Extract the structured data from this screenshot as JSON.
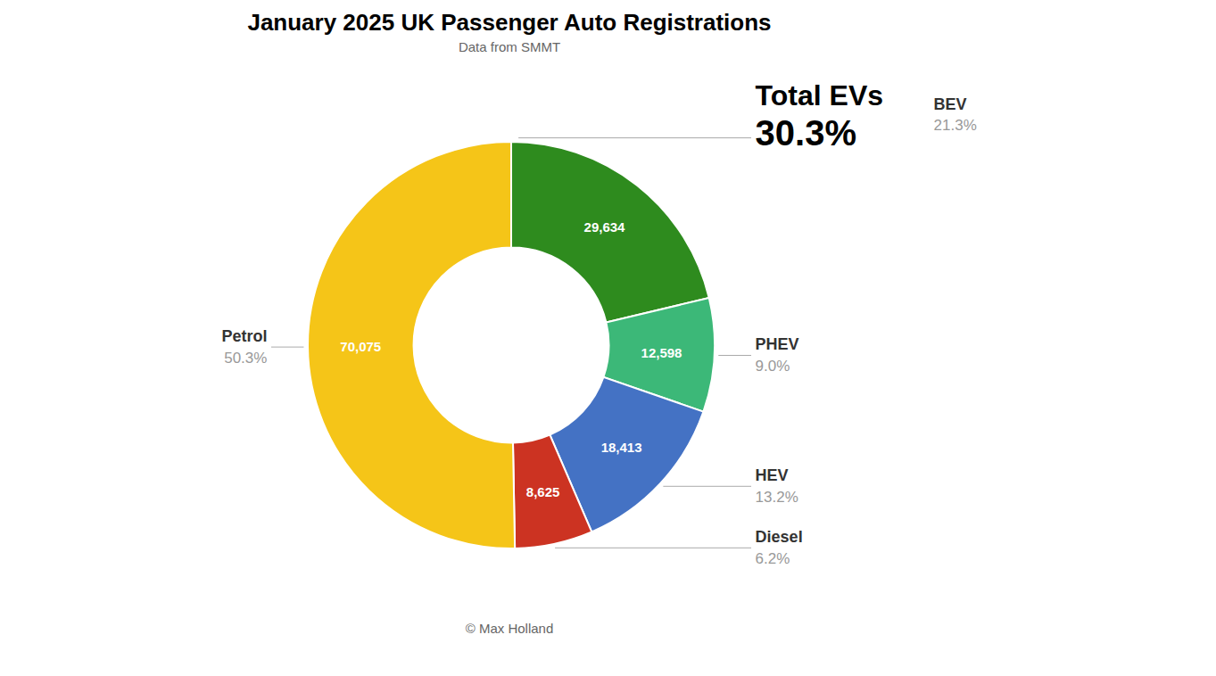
{
  "chart_data": {
    "type": "pie",
    "title": "January 2025 UK Passenger Auto Registrations",
    "subtitle": "Data from SMMT",
    "footer": "© Max Holland",
    "categories": [
      "BEV",
      "PHEV",
      "HEV",
      "Diesel",
      "Petrol"
    ],
    "values": [
      29634,
      12598,
      18413,
      8625,
      70075
    ],
    "value_labels": [
      "29,634",
      "12,598",
      "18,413",
      "8,625",
      "70,075"
    ],
    "data_labels": true,
    "shares": [
      21.3,
      9.0,
      13.2,
      6.2,
      50.3
    ],
    "share_labels": [
      "21.3%",
      "9.0%",
      "13.2%",
      "6.2%",
      "50.3%"
    ],
    "colors": [
      "#2e8b1e",
      "#3cb878",
      "#4472c4",
      "#cc3322",
      "#f5c518"
    ],
    "annotations": [
      "Total EVs",
      "30.3%"
    ]
  }
}
